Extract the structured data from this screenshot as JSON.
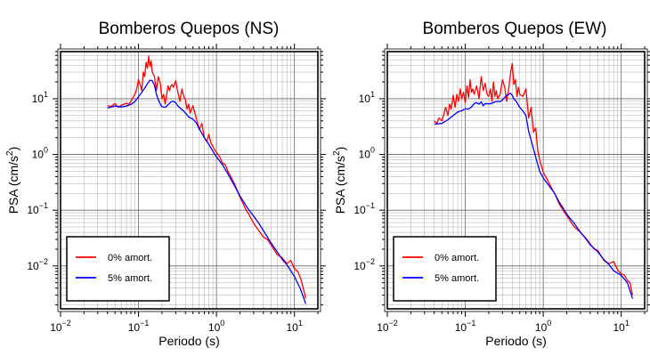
{
  "chart_data": [
    {
      "type": "line",
      "title": "Bomberos Quepos (NS)",
      "xlabel": "Periodo (s)",
      "ylabel_main": "PSA (cm/s",
      "ylabel_sup": "2",
      "ylabel_tail": ")",
      "xscale": "log",
      "yscale": "log",
      "xlim": [
        0.01,
        20
      ],
      "ylim": [
        0.0017,
        70
      ],
      "xticks": [
        {
          "base": "10",
          "exp": "−2"
        },
        {
          "base": "10",
          "exp": "−1"
        },
        {
          "base": "10",
          "exp": "0"
        },
        {
          "base": "10",
          "exp": "1"
        }
      ],
      "yticks": [
        {
          "base": "10",
          "exp": "−2"
        },
        {
          "base": "10",
          "exp": "−1"
        },
        {
          "base": "10",
          "exp": "0"
        },
        {
          "base": "10",
          "exp": "1"
        }
      ],
      "grid": true,
      "legend_position": "bottom-left",
      "series": [
        {
          "name": "0% amort.",
          "color": "#ff0000",
          "x": [
            0.04,
            0.045,
            0.05,
            0.055,
            0.06,
            0.065,
            0.07,
            0.075,
            0.08,
            0.085,
            0.09,
            0.095,
            0.1,
            0.105,
            0.11,
            0.115,
            0.12,
            0.125,
            0.13,
            0.135,
            0.14,
            0.145,
            0.15,
            0.16,
            0.17,
            0.18,
            0.19,
            0.2,
            0.21,
            0.22,
            0.23,
            0.24,
            0.25,
            0.26,
            0.27,
            0.28,
            0.3,
            0.32,
            0.34,
            0.36,
            0.38,
            0.4,
            0.42,
            0.44,
            0.46,
            0.48,
            0.5,
            0.55,
            0.6,
            0.65,
            0.7,
            0.75,
            0.8,
            0.85,
            0.9,
            0.95,
            1.0,
            1.1,
            1.2,
            1.3,
            1.4,
            1.5,
            1.6,
            1.7,
            1.8,
            2.0,
            2.2,
            2.4,
            2.6,
            2.8,
            3.0,
            3.5,
            4.0,
            4.5,
            5.0,
            6.0,
            7.0,
            8.0,
            9.0,
            10.0,
            11.0,
            12.0,
            13.0,
            14.0
          ],
          "y": [
            7.5,
            7.3,
            8.2,
            7.0,
            7.6,
            8.0,
            8.3,
            7.9,
            9.0,
            10.5,
            12.0,
            15.0,
            22.0,
            18.0,
            14.0,
            30.0,
            25.0,
            45.0,
            35.0,
            58.0,
            38.0,
            48.0,
            30.0,
            25.0,
            14.0,
            25.0,
            19.0,
            10.0,
            12.0,
            8.0,
            12.0,
            17.0,
            14.0,
            17.0,
            18.0,
            16.0,
            21.0,
            13.0,
            9.0,
            15.0,
            11.0,
            9.5,
            6.5,
            8.0,
            5.5,
            6.5,
            7.5,
            4.5,
            2.8,
            3.6,
            2.0,
            1.7,
            2.3,
            1.6,
            1.4,
            1.2,
            1.1,
            0.9,
            0.7,
            0.65,
            0.5,
            0.42,
            0.35,
            0.3,
            0.25,
            0.17,
            0.13,
            0.1,
            0.085,
            0.07,
            0.058,
            0.043,
            0.033,
            0.03,
            0.024,
            0.016,
            0.014,
            0.011,
            0.0125,
            0.009,
            0.008,
            0.006,
            0.004,
            0.0026
          ]
        },
        {
          "name": "5% amort.",
          "color": "#0000ff",
          "x": [
            0.04,
            0.05,
            0.06,
            0.07,
            0.08,
            0.09,
            0.1,
            0.11,
            0.12,
            0.13,
            0.14,
            0.15,
            0.16,
            0.17,
            0.18,
            0.19,
            0.2,
            0.22,
            0.24,
            0.26,
            0.28,
            0.3,
            0.32,
            0.35,
            0.38,
            0.4,
            0.45,
            0.5,
            0.55,
            0.6,
            0.7,
            0.8,
            0.9,
            1.0,
            1.2,
            1.4,
            1.6,
            1.8,
            2.0,
            2.5,
            3.0,
            3.5,
            4.0,
            5.0,
            6.0,
            7.0,
            8.0,
            10.0,
            12.0,
            14.0
          ],
          "y": [
            6.8,
            7.4,
            7.1,
            7.4,
            7.9,
            8.9,
            10.8,
            13.0,
            15.5,
            18.5,
            21.5,
            21.0,
            17.5,
            12.0,
            9.5,
            8.0,
            7.2,
            7.0,
            7.8,
            8.8,
            9.0,
            8.5,
            7.4,
            6.6,
            6.0,
            5.5,
            4.6,
            4.3,
            3.7,
            2.9,
            2.0,
            1.5,
            1.15,
            0.9,
            0.65,
            0.45,
            0.32,
            0.24,
            0.18,
            0.11,
            0.078,
            0.058,
            0.043,
            0.026,
            0.018,
            0.013,
            0.0105,
            0.0065,
            0.0038,
            0.0021
          ]
        }
      ]
    },
    {
      "type": "line",
      "title": "Bomberos Quepos (EW)",
      "xlabel": "Periodo (s)",
      "ylabel_main": "PSA (cm/s",
      "ylabel_sup": "2",
      "ylabel_tail": ")",
      "xscale": "log",
      "yscale": "log",
      "xlim": [
        0.01,
        20
      ],
      "ylim": [
        0.0017,
        70
      ],
      "xticks": [
        {
          "base": "10",
          "exp": "−2"
        },
        {
          "base": "10",
          "exp": "−1"
        },
        {
          "base": "10",
          "exp": "0"
        },
        {
          "base": "10",
          "exp": "1"
        }
      ],
      "yticks": [
        {
          "base": "10",
          "exp": "−2"
        },
        {
          "base": "10",
          "exp": "−1"
        },
        {
          "base": "10",
          "exp": "0"
        },
        {
          "base": "10",
          "exp": "1"
        }
      ],
      "grid": true,
      "legend_position": "bottom-left",
      "series": [
        {
          "name": "0% amort.",
          "color": "#ff0000",
          "x": [
            0.04,
            0.043,
            0.046,
            0.05,
            0.053,
            0.056,
            0.06,
            0.063,
            0.066,
            0.07,
            0.074,
            0.078,
            0.082,
            0.086,
            0.09,
            0.095,
            0.1,
            0.105,
            0.11,
            0.115,
            0.12,
            0.125,
            0.13,
            0.14,
            0.15,
            0.16,
            0.17,
            0.18,
            0.19,
            0.2,
            0.21,
            0.22,
            0.23,
            0.24,
            0.25,
            0.26,
            0.28,
            0.3,
            0.32,
            0.34,
            0.36,
            0.38,
            0.4,
            0.42,
            0.44,
            0.46,
            0.48,
            0.5,
            0.55,
            0.6,
            0.65,
            0.7,
            0.75,
            0.8,
            0.85,
            0.9,
            1.0,
            1.1,
            1.2,
            1.3,
            1.4,
            1.6,
            1.8,
            2.0,
            2.2,
            2.5,
            3.0,
            3.5,
            4.0,
            4.5,
            5.0,
            6.0,
            7.0,
            8.0,
            9.0,
            10.0,
            11.0,
            12.0,
            13.0,
            14.0
          ],
          "y": [
            4.0,
            3.6,
            4.5,
            4.0,
            5.2,
            7.0,
            5.0,
            8.0,
            6.5,
            11.5,
            7.0,
            12.0,
            9.0,
            15.0,
            10.0,
            13.0,
            8.5,
            17.0,
            10.5,
            22.0,
            13.0,
            15.0,
            12.0,
            17.0,
            10.0,
            25.0,
            14.0,
            19.0,
            12.0,
            11.0,
            15.0,
            9.0,
            20.0,
            11.0,
            14.0,
            10.0,
            12.0,
            22.0,
            16.0,
            9.0,
            15.0,
            28.0,
            43.0,
            18.0,
            22.0,
            11.0,
            16.0,
            12.0,
            11.0,
            15.0,
            4.5,
            7.0,
            2.5,
            3.0,
            1.2,
            0.8,
            0.48,
            0.38,
            0.3,
            0.24,
            0.2,
            0.13,
            0.1,
            0.08,
            0.065,
            0.05,
            0.04,
            0.032,
            0.025,
            0.02,
            0.019,
            0.0125,
            0.011,
            0.012,
            0.0085,
            0.0072,
            0.0068,
            0.0055,
            0.005,
            0.003
          ]
        },
        {
          "name": "5% amort.",
          "color": "#0000ff",
          "x": [
            0.04,
            0.05,
            0.06,
            0.07,
            0.08,
            0.09,
            0.1,
            0.11,
            0.12,
            0.13,
            0.14,
            0.15,
            0.16,
            0.17,
            0.18,
            0.2,
            0.22,
            0.24,
            0.26,
            0.28,
            0.3,
            0.32,
            0.34,
            0.36,
            0.38,
            0.4,
            0.42,
            0.45,
            0.5,
            0.55,
            0.6,
            0.65,
            0.7,
            0.8,
            0.9,
            1.0,
            1.2,
            1.4,
            1.6,
            1.8,
            2.0,
            2.5,
            3.0,
            3.5,
            4.0,
            5.0,
            6.0,
            7.0,
            8.0,
            10.0,
            12.0,
            14.0
          ],
          "y": [
            3.5,
            3.6,
            4.2,
            5.0,
            5.8,
            6.1,
            6.6,
            6.5,
            7.1,
            8.2,
            8.5,
            8.0,
            8.8,
            7.5,
            8.2,
            8.1,
            8.3,
            8.8,
            9.0,
            8.8,
            9.5,
            10.5,
            11.5,
            12.0,
            12.5,
            11.5,
            10.0,
            9.0,
            7.0,
            6.0,
            5.0,
            2.6,
            1.8,
            0.9,
            0.5,
            0.38,
            0.27,
            0.2,
            0.14,
            0.11,
            0.085,
            0.058,
            0.04,
            0.031,
            0.024,
            0.018,
            0.013,
            0.0105,
            0.0082,
            0.0068,
            0.005,
            0.0026
          ]
        }
      ]
    }
  ]
}
